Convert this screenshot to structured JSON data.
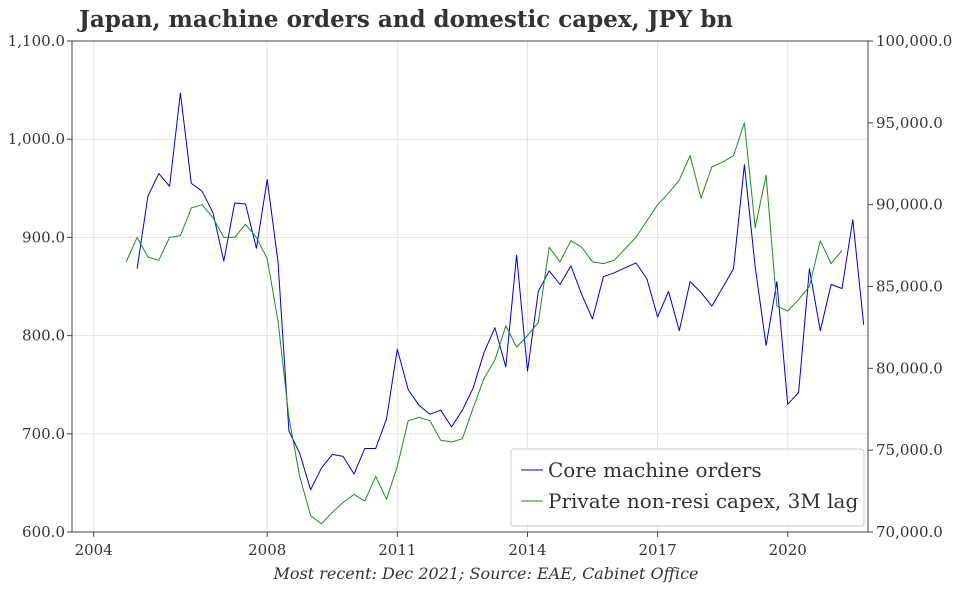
{
  "chart_data": {
    "type": "line",
    "title": "Japan, machine orders and domestic capex, JPY bn",
    "footer": "Most recent: Dec 2021; Source: EAE, Cabinet Office",
    "x_ticks": [
      "2004",
      "2008",
      "2011",
      "2014",
      "2017",
      "2020"
    ],
    "y_left": {
      "range": [
        600,
        1100
      ],
      "ticks": [
        "600.0",
        "700.0",
        "800.0",
        "900.0",
        "1,000.0",
        "1,100.0"
      ]
    },
    "y_right": {
      "range": [
        70000,
        100000
      ],
      "ticks": [
        "70,000.0",
        "75,000.0",
        "80,000.0",
        "85,000.0",
        "90,000.0",
        "95,000.0",
        "100,000.0"
      ]
    },
    "grid": true,
    "legend_position": "bottom-right",
    "series": [
      {
        "name": "Core machine orders",
        "axis": "left",
        "color": "#0000cc",
        "x": [
          2005.0,
          2005.25,
          2005.5,
          2005.75,
          2006.0,
          2006.25,
          2006.5,
          2006.75,
          2007.0,
          2007.25,
          2007.5,
          2007.75,
          2008.0,
          2008.25,
          2008.5,
          2008.75,
          2009.0,
          2009.25,
          2009.5,
          2009.75,
          2010.0,
          2010.25,
          2010.5,
          2010.75,
          2011.0,
          2011.25,
          2011.5,
          2011.75,
          2012.0,
          2012.25,
          2012.5,
          2012.75,
          2013.0,
          2013.25,
          2013.5,
          2013.75,
          2014.0,
          2014.25,
          2014.5,
          2014.75,
          2015.0,
          2015.25,
          2015.5,
          2015.75,
          2016.0,
          2016.25,
          2016.5,
          2016.75,
          2017.0,
          2017.25,
          2017.5,
          2017.75,
          2018.0,
          2018.25,
          2018.5,
          2018.75,
          2019.0,
          2019.25,
          2019.5,
          2019.75,
          2020.0,
          2020.25,
          2020.5,
          2020.75,
          2021.0,
          2021.25,
          2021.5,
          2021.75
        ],
        "values": [
          868,
          942,
          965,
          952,
          1047,
          955,
          947,
          925,
          876,
          935,
          934,
          889,
          959,
          875,
          703,
          680,
          643,
          665,
          679,
          677,
          659,
          685,
          685,
          715,
          786,
          745,
          729,
          720,
          724,
          707,
          724,
          747,
          783,
          808,
          768,
          882,
          764,
          845,
          866,
          852,
          871,
          842,
          817,
          860,
          864,
          869,
          874,
          858,
          819,
          845,
          805,
          855,
          844,
          830,
          849,
          868,
          974,
          870,
          790,
          855,
          730,
          742,
          868,
          805,
          852,
          848,
          918,
          811
        ]
      },
      {
        "name": "Private non-resi capex, 3M lag",
        "axis": "right",
        "color": "#228b22",
        "x": [
          2004.75,
          2005.0,
          2005.25,
          2005.5,
          2005.75,
          2006.0,
          2006.25,
          2006.5,
          2006.75,
          2007.0,
          2007.25,
          2007.5,
          2007.75,
          2008.0,
          2008.25,
          2008.5,
          2008.75,
          2009.0,
          2009.25,
          2009.5,
          2009.75,
          2010.0,
          2010.25,
          2010.5,
          2010.75,
          2011.0,
          2011.25,
          2011.5,
          2011.75,
          2012.0,
          2012.25,
          2012.5,
          2012.75,
          2013.0,
          2013.25,
          2013.5,
          2013.75,
          2014.0,
          2014.25,
          2014.5,
          2014.75,
          2015.0,
          2015.25,
          2015.5,
          2015.75,
          2016.0,
          2016.25,
          2016.5,
          2016.75,
          2017.0,
          2017.25,
          2017.5,
          2017.75,
          2018.0,
          2018.25,
          2018.5,
          2018.75,
          2019.0,
          2019.25,
          2019.5,
          2019.75,
          2020.0,
          2020.25,
          2020.5,
          2020.75,
          2021.0,
          2021.25
        ],
        "values": [
          86500,
          88000,
          86800,
          86600,
          88000,
          88100,
          89800,
          90000,
          89200,
          88000,
          88000,
          88800,
          88000,
          86700,
          82900,
          77000,
          73400,
          71000,
          70500,
          71200,
          71800,
          72300,
          71900,
          73400,
          72000,
          74000,
          76800,
          77000,
          76800,
          75600,
          75500,
          75700,
          77600,
          79400,
          80500,
          82600,
          81300,
          82000,
          82800,
          87400,
          86500,
          87800,
          87400,
          86500,
          86400,
          86600,
          87300,
          88000,
          89000,
          90000,
          90700,
          91500,
          93000,
          90400,
          92300,
          92600,
          93000,
          95000,
          88600,
          91800,
          83800,
          83500,
          84200,
          85000,
          87800,
          86400,
          87200
        ]
      }
    ]
  }
}
